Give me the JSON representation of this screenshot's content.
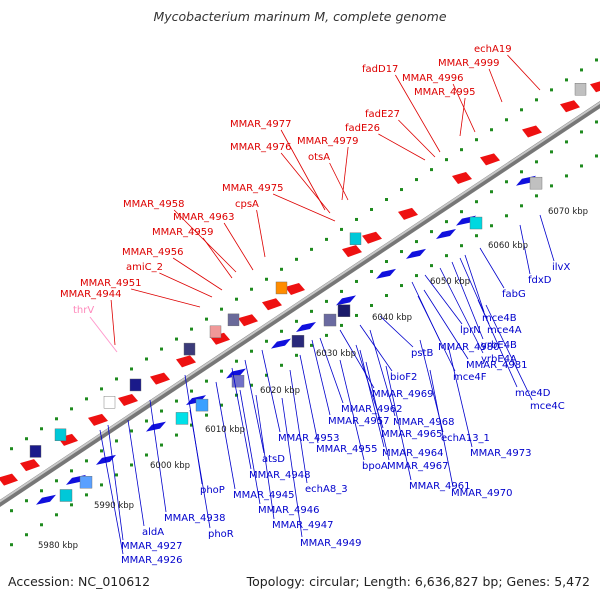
{
  "title": "Mycobacterium marinum M, complete genome",
  "footer": {
    "accession": "Accession: NC_010612",
    "summary": "Topology: circular; Length: 6,636,827 bp; Genes: 5,472"
  },
  "colors": {
    "upper_labels": "#dd0000",
    "lower_labels": "#0000cc",
    "trna_label": "#ff88bb",
    "backbone": "#888888",
    "tick_dots": "#1e8a1e"
  },
  "kbp_ticks": [
    "5980 kbp",
    "5990 kbp",
    "6000 kbp",
    "6010 kbp",
    "6020 kbp",
    "6030 kbp",
    "6040 kbp",
    "6050 kbp",
    "6060 kbp",
    "6070 kbp"
  ],
  "upper_labels": [
    "echA19",
    "MMAR_4999",
    "fadD17",
    "MMAR_4996",
    "MMAR_4995",
    "fadE27",
    "fadE26",
    "MMAR_4977",
    "MMAR_4979",
    "MMAR_4976",
    "otsA",
    "MMAR_4975",
    "cpsA",
    "MMAR_4958",
    "MMAR_4963",
    "MMAR_4959",
    "MMAR_4956",
    "amiC_2",
    "MMAR_4951",
    "MMAR_4944"
  ],
  "trna_label": "thrV",
  "lower_labels": [
    "ilvX",
    "fdxD",
    "fabG",
    "mce4B",
    "mce4A",
    "yrbE4B",
    "yrbE4A",
    "lprN",
    "MMAR_4980",
    "MMAR_4981",
    "mce4F",
    "mce4D",
    "mce4C",
    "pstB",
    "bioF2",
    "MMAR_4969",
    "MMAR_4962",
    "MMAR_4968",
    "MMAR_4957",
    "MMAR_4965",
    "MMAR_4953",
    "echA13_1",
    "MMAR_4955",
    "MMAR_4964",
    "MMAR_4973",
    "atsD",
    "bpoA",
    "MMAR_4967",
    "MMAR_4948",
    "echA8_3",
    "MMAR_4961",
    "MMAR_4970",
    "phoP",
    "MMAR_4945",
    "MMAR_4946",
    "MMAR_4947",
    "MMAR_4938",
    "MMAR_4949",
    "phoR",
    "aldA",
    "MMAR_4927",
    "MMAR_4926"
  ]
}
